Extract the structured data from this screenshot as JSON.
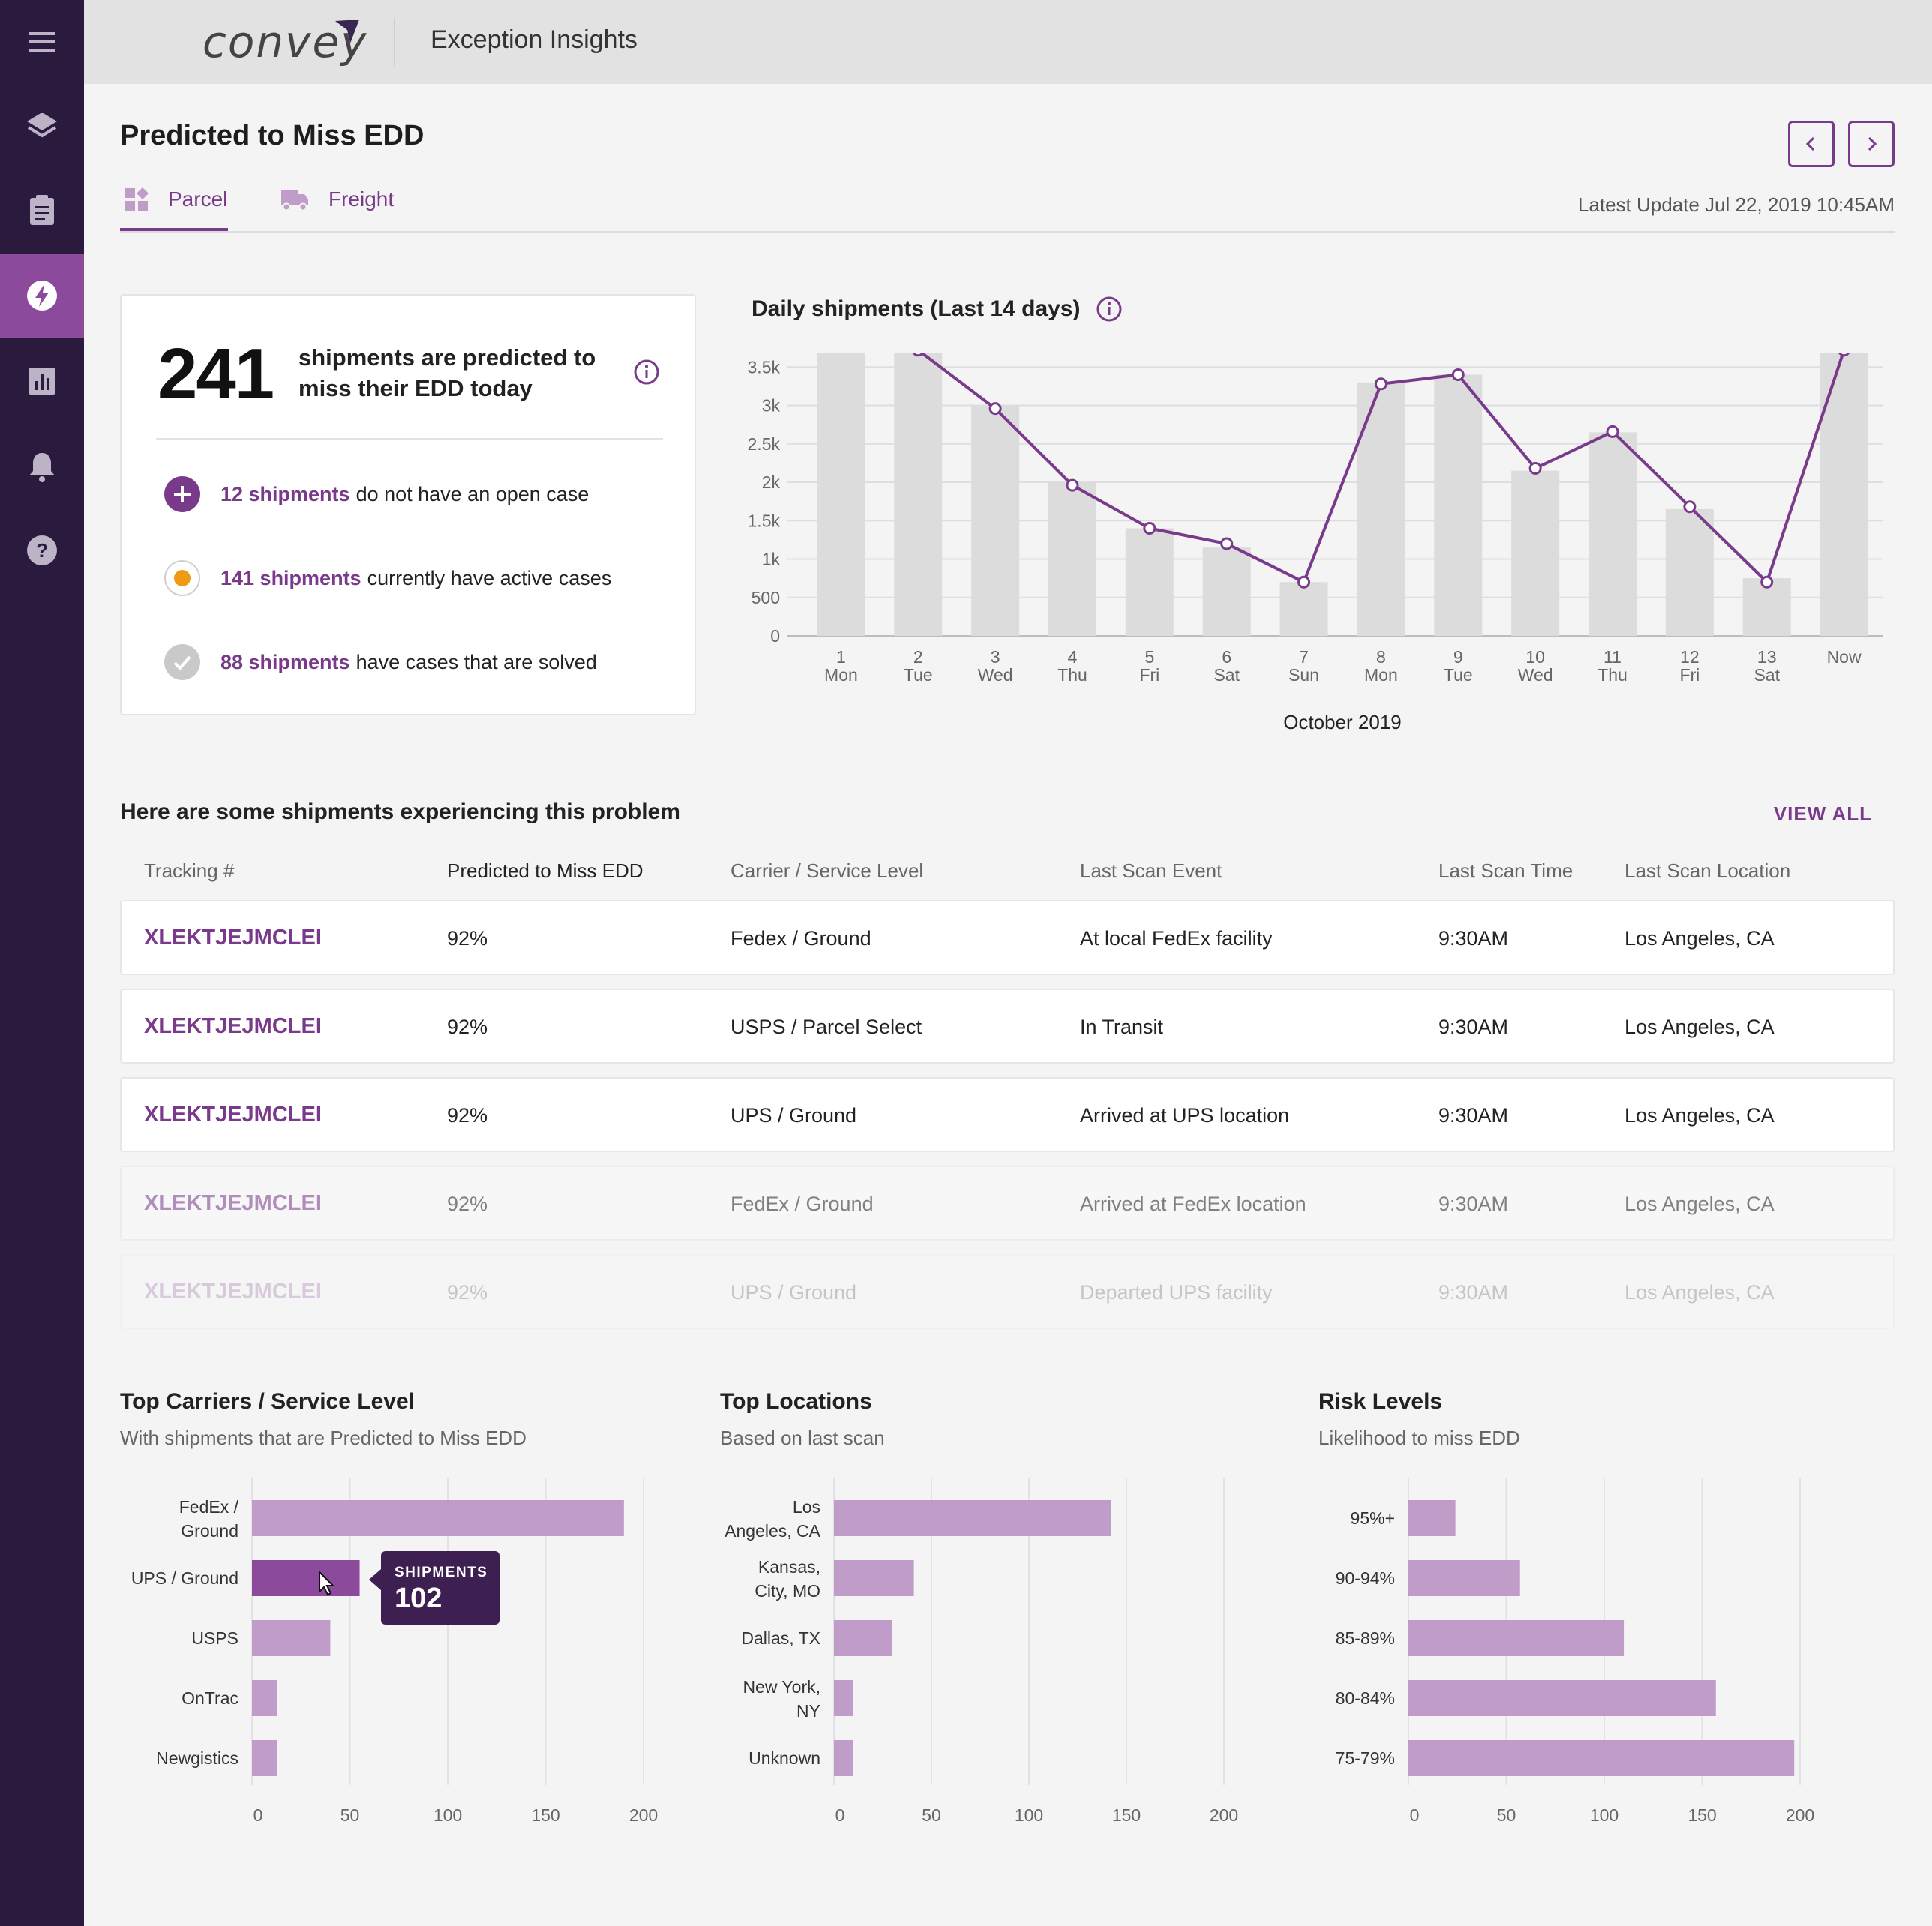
{
  "app": {
    "logo_text": "convey",
    "title": "Exception Insights"
  },
  "sidebar": {
    "items": [
      {
        "name": "menu",
        "icon": "hamburger-icon",
        "active": false
      },
      {
        "name": "layers",
        "icon": "layers-icon",
        "active": false
      },
      {
        "name": "clipboard",
        "icon": "clipboard-icon",
        "active": false
      },
      {
        "name": "insights",
        "icon": "bolt-icon",
        "active": true
      },
      {
        "name": "reports",
        "icon": "bar-chart-icon",
        "active": false
      },
      {
        "name": "notifications",
        "icon": "bell-icon",
        "active": false
      },
      {
        "name": "help",
        "icon": "help-icon",
        "active": false
      }
    ]
  },
  "header": {
    "page_title": "Predicted to Miss EDD",
    "tabs": [
      {
        "label": "Parcel",
        "active": true
      },
      {
        "label": "Freight",
        "active": false
      }
    ],
    "latest_update": "Latest Update Jul 22, 2019 10:45AM"
  },
  "summary": {
    "count": "241",
    "text": "shipments are predicted to miss their EDD today",
    "stats": [
      {
        "highlight": "12 shipments",
        "text": "do not have an open case"
      },
      {
        "highlight": "141 shipments",
        "text": "currently have active cases"
      },
      {
        "highlight": "88 shipments",
        "text": "have cases that are solved"
      }
    ]
  },
  "colors": {
    "accent": "#7a3a8c",
    "sidebar": "#2a1a3d",
    "bar": "#c09dc9",
    "bar_active": "#8b4a9c",
    "grey_bar": "#dcdcdc"
  },
  "chart_data": [
    {
      "type": "bar+line",
      "title": "Daily shipments (Last 14 days)",
      "xlabel": "October 2019",
      "categories": [
        "1\nMon",
        "2\nTue",
        "3\nWed",
        "4\nThu",
        "5\nFri",
        "6\nSat",
        "7\nSun",
        "8\nMon",
        "9\nTue",
        "10\nWed",
        "11\nThu",
        "12\nFri",
        "13\nSat",
        "Now"
      ],
      "x_top": [
        "1",
        "2",
        "3",
        "4",
        "5",
        "6",
        "7",
        "8",
        "9",
        "10",
        "11",
        "12",
        "13",
        "Now"
      ],
      "x_bottom": [
        "Mon",
        "Tue",
        "Wed",
        "Thu",
        "Fri",
        "Sat",
        "Sun",
        "Mon",
        "Tue",
        "Wed",
        "Thu",
        "Fri",
        "Sat",
        ""
      ],
      "bar_values": [
        3900,
        3750,
        3000,
        2000,
        1400,
        1150,
        700,
        3300,
        3400,
        2150,
        2650,
        1650,
        750,
        3700
      ],
      "line_values": [
        3900,
        3720,
        2960,
        1960,
        1400,
        1200,
        700,
        3280,
        3400,
        2180,
        2660,
        1680,
        700,
        3720
      ],
      "yticks": [
        "0",
        "500",
        "1k",
        "1.5k",
        "2k",
        "2.5k",
        "3k",
        "3.5k"
      ],
      "ylim": [
        0,
        4000
      ]
    },
    {
      "type": "bar",
      "orientation": "horizontal",
      "title": "Top Carriers / Service Level",
      "subtitle": "With shipments that are Predicted to Miss EDD",
      "categories": [
        "FedEx / Ground",
        "UPS / Ground",
        "USPS",
        "OnTrac",
        "Newgistics"
      ],
      "values": [
        190,
        55,
        40,
        13,
        13
      ],
      "highlight_index": 1,
      "xticks": [
        "0",
        "50",
        "100",
        "150",
        "200"
      ],
      "xlim": [
        0,
        200
      ]
    },
    {
      "type": "bar",
      "orientation": "horizontal",
      "title": "Top Locations",
      "subtitle": "Based on last scan",
      "categories": [
        "Los Angeles, CA",
        "Kansas, City, MO",
        "Dallas, TX",
        "New York, NY",
        "Unknown"
      ],
      "values": [
        142,
        41,
        30,
        10,
        10
      ],
      "xticks": [
        "0",
        "50",
        "100",
        "150",
        "200"
      ],
      "xlim": [
        0,
        200
      ]
    },
    {
      "type": "bar",
      "orientation": "horizontal",
      "title": "Risk Levels",
      "subtitle": "Likelihood to miss EDD",
      "categories": [
        "95%+",
        "90-94%",
        "85-89%",
        "80-84%",
        "75-79%"
      ],
      "values": [
        24,
        57,
        110,
        157,
        197
      ],
      "xticks": [
        "0",
        "50",
        "100",
        "150",
        "200"
      ],
      "xlim": [
        0,
        200
      ]
    }
  ],
  "tooltip": {
    "label": "SHIPMENTS",
    "value": "102"
  },
  "table": {
    "title": "Here are some shipments experiencing this problem",
    "view_all": "VIEW ALL",
    "headers": [
      "Tracking #",
      "Predicted to Miss EDD",
      "Carrier / Service Level",
      "Last Scan Event",
      "Last Scan Time",
      "Last Scan Location"
    ],
    "rows": [
      [
        "XLEKTJEJMCLEI",
        "92%",
        "Fedex / Ground",
        "At local FedEx facility",
        "9:30AM",
        "Los Angeles, CA"
      ],
      [
        "XLEKTJEJMCLEI",
        "92%",
        "USPS / Parcel Select",
        "In Transit",
        "9:30AM",
        "Los Angeles, CA"
      ],
      [
        "XLEKTJEJMCLEI",
        "92%",
        "UPS / Ground",
        "Arrived at UPS location",
        "9:30AM",
        "Los Angeles, CA"
      ],
      [
        "XLEKTJEJMCLEI",
        "92%",
        "FedEx / Ground",
        "Arrived at FedEx location",
        "9:30AM",
        "Los Angeles, CA"
      ],
      [
        "XLEKTJEJMCLEI",
        "92%",
        "UPS / Ground",
        "Departed UPS facility",
        "9:30AM",
        "Los Angeles, CA"
      ]
    ]
  }
}
